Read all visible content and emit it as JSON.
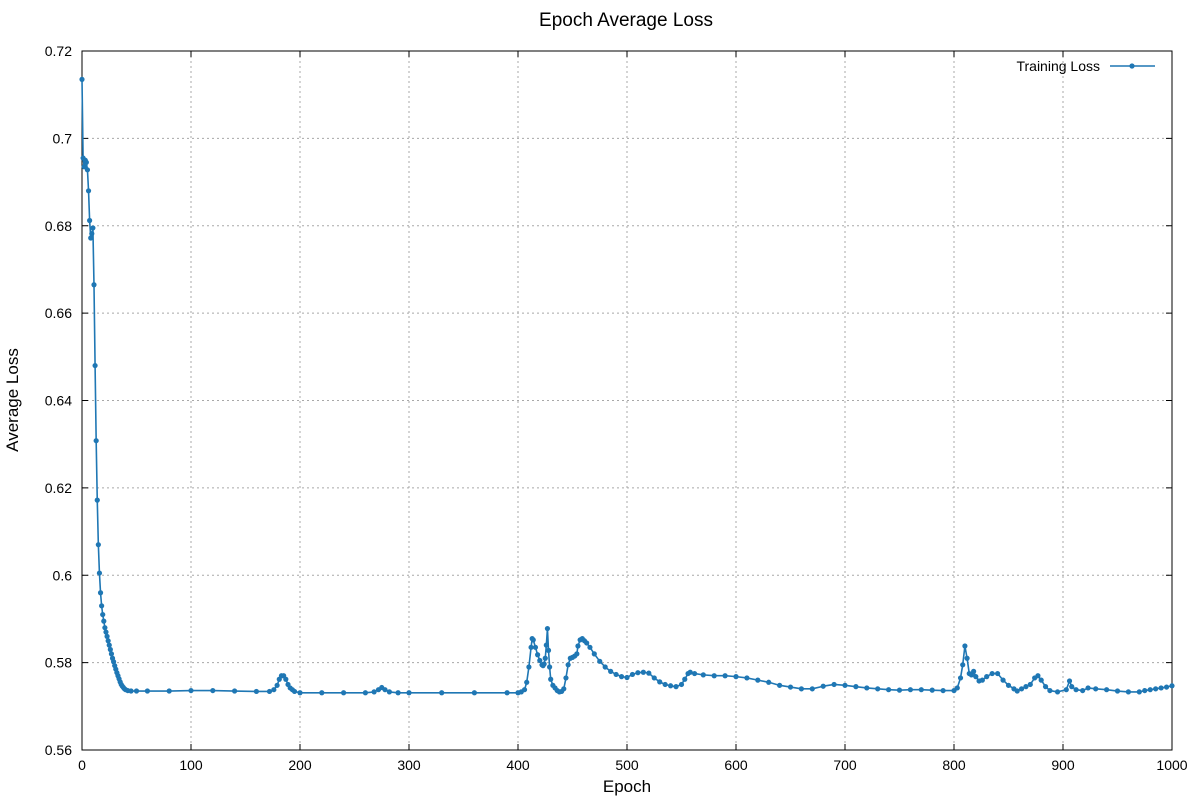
{
  "chart_data": {
    "type": "line",
    "title": "Epoch Average Loss",
    "xlabel": "Epoch",
    "ylabel": "Average Loss",
    "xlim": [
      0,
      1000
    ],
    "ylim": [
      0.56,
      0.72
    ],
    "xticks": [
      0,
      100,
      200,
      300,
      400,
      500,
      600,
      700,
      800,
      900,
      1000
    ],
    "xtick_labels": [
      "0",
      "100",
      "200",
      "300",
      "400",
      "500",
      "600",
      "700",
      "800",
      "900",
      "1000"
    ],
    "yticks": [
      0.56,
      0.58,
      0.6,
      0.62,
      0.64,
      0.66,
      0.68,
      0.7,
      0.72
    ],
    "ytick_labels": [
      "0.56",
      "0.58",
      "0.6",
      "0.62",
      "0.64",
      "0.66",
      "0.68",
      "0.7",
      "0.72"
    ],
    "grid": true,
    "legend_position": "top-right",
    "markers": true,
    "series": [
      {
        "name": "Training Loss",
        "color": "#1f77b4",
        "points": [
          [
            0,
            0.7135
          ],
          [
            1,
            0.6955
          ],
          [
            2,
            0.6935
          ],
          [
            3,
            0.695
          ],
          [
            4,
            0.6945
          ],
          [
            5,
            0.6928
          ],
          [
            6,
            0.688
          ],
          [
            7,
            0.6812
          ],
          [
            8,
            0.6772
          ],
          [
            9,
            0.6782
          ],
          [
            10,
            0.6795
          ],
          [
            11,
            0.6665
          ],
          [
            12,
            0.648
          ],
          [
            13,
            0.6308
          ],
          [
            14,
            0.6172
          ],
          [
            15,
            0.607
          ],
          [
            16,
            0.6005
          ],
          [
            17,
            0.596
          ],
          [
            18,
            0.593
          ],
          [
            19,
            0.591
          ],
          [
            20,
            0.5895
          ],
          [
            21,
            0.588
          ],
          [
            22,
            0.587
          ],
          [
            23,
            0.586
          ],
          [
            24,
            0.585
          ],
          [
            25,
            0.584
          ],
          [
            26,
            0.583
          ],
          [
            27,
            0.582
          ],
          [
            28,
            0.581
          ],
          [
            29,
            0.5802
          ],
          [
            30,
            0.5793
          ],
          [
            31,
            0.5785
          ],
          [
            32,
            0.5777
          ],
          [
            33,
            0.577
          ],
          [
            34,
            0.5763
          ],
          [
            35,
            0.5756
          ],
          [
            36,
            0.575
          ],
          [
            37,
            0.5746
          ],
          [
            38,
            0.5743
          ],
          [
            39,
            0.574
          ],
          [
            40,
            0.5738
          ],
          [
            42,
            0.5736
          ],
          [
            45,
            0.5735
          ],
          [
            50,
            0.5735
          ],
          [
            60,
            0.5735
          ],
          [
            80,
            0.5735
          ],
          [
            100,
            0.5736
          ],
          [
            120,
            0.5736
          ],
          [
            140,
            0.5735
          ],
          [
            160,
            0.5734
          ],
          [
            172,
            0.5734
          ],
          [
            176,
            0.5738
          ],
          [
            179,
            0.5748
          ],
          [
            181,
            0.5762
          ],
          [
            183,
            0.577
          ],
          [
            185,
            0.577
          ],
          [
            187,
            0.5762
          ],
          [
            189,
            0.575
          ],
          [
            191,
            0.5742
          ],
          [
            193,
            0.5738
          ],
          [
            195,
            0.5734
          ],
          [
            200,
            0.5731
          ],
          [
            220,
            0.5731
          ],
          [
            240,
            0.5731
          ],
          [
            260,
            0.5731
          ],
          [
            268,
            0.5733
          ],
          [
            272,
            0.5738
          ],
          [
            275,
            0.5743
          ],
          [
            278,
            0.5738
          ],
          [
            282,
            0.5733
          ],
          [
            290,
            0.5731
          ],
          [
            300,
            0.5731
          ],
          [
            330,
            0.5731
          ],
          [
            360,
            0.5731
          ],
          [
            390,
            0.5731
          ],
          [
            400,
            0.5731
          ],
          [
            403,
            0.5733
          ],
          [
            406,
            0.5738
          ],
          [
            408,
            0.5755
          ],
          [
            410,
            0.579
          ],
          [
            412,
            0.5835
          ],
          [
            413,
            0.5855
          ],
          [
            414,
            0.5852
          ],
          [
            416,
            0.5835
          ],
          [
            418,
            0.5818
          ],
          [
            420,
            0.5805
          ],
          [
            422,
            0.5795
          ],
          [
            423,
            0.5793
          ],
          [
            424,
            0.5797
          ],
          [
            425,
            0.581
          ],
          [
            426,
            0.584
          ],
          [
            427,
            0.5878
          ],
          [
            428,
            0.5828
          ],
          [
            429,
            0.579
          ],
          [
            430,
            0.5762
          ],
          [
            432,
            0.5748
          ],
          [
            434,
            0.5742
          ],
          [
            436,
            0.5736
          ],
          [
            438,
            0.5733
          ],
          [
            440,
            0.5734
          ],
          [
            442,
            0.574
          ],
          [
            444,
            0.5765
          ],
          [
            446,
            0.5795
          ],
          [
            448,
            0.581
          ],
          [
            450,
            0.5812
          ],
          [
            452,
            0.5815
          ],
          [
            454,
            0.582
          ],
          [
            455,
            0.5838
          ],
          [
            457,
            0.5852
          ],
          [
            459,
            0.5855
          ],
          [
            461,
            0.585
          ],
          [
            463,
            0.5845
          ],
          [
            466,
            0.5835
          ],
          [
            470,
            0.582
          ],
          [
            475,
            0.5803
          ],
          [
            480,
            0.579
          ],
          [
            485,
            0.578
          ],
          [
            490,
            0.5773
          ],
          [
            495,
            0.5768
          ],
          [
            500,
            0.5766
          ],
          [
            505,
            0.5773
          ],
          [
            510,
            0.5777
          ],
          [
            515,
            0.5778
          ],
          [
            520,
            0.5776
          ],
          [
            525,
            0.5765
          ],
          [
            530,
            0.5756
          ],
          [
            535,
            0.575
          ],
          [
            540,
            0.5747
          ],
          [
            545,
            0.5745
          ],
          [
            550,
            0.575
          ],
          [
            553,
            0.5762
          ],
          [
            556,
            0.5775
          ],
          [
            558,
            0.5778
          ],
          [
            562,
            0.5775
          ],
          [
            570,
            0.5772
          ],
          [
            580,
            0.577
          ],
          [
            590,
            0.577
          ],
          [
            600,
            0.5768
          ],
          [
            610,
            0.5765
          ],
          [
            620,
            0.576
          ],
          [
            630,
            0.5755
          ],
          [
            640,
            0.5748
          ],
          [
            650,
            0.5744
          ],
          [
            660,
            0.574
          ],
          [
            670,
            0.574
          ],
          [
            680,
            0.5746
          ],
          [
            690,
            0.575
          ],
          [
            700,
            0.5748
          ],
          [
            710,
            0.5745
          ],
          [
            720,
            0.5742
          ],
          [
            730,
            0.574
          ],
          [
            740,
            0.5738
          ],
          [
            750,
            0.5737
          ],
          [
            760,
            0.5738
          ],
          [
            770,
            0.5738
          ],
          [
            780,
            0.5737
          ],
          [
            790,
            0.5736
          ],
          [
            800,
            0.5736
          ],
          [
            803,
            0.5742
          ],
          [
            806,
            0.5765
          ],
          [
            808,
            0.5795
          ],
          [
            810,
            0.5838
          ],
          [
            812,
            0.581
          ],
          [
            814,
            0.5775
          ],
          [
            816,
            0.5772
          ],
          [
            818,
            0.578
          ],
          [
            820,
            0.5768
          ],
          [
            823,
            0.5758
          ],
          [
            826,
            0.576
          ],
          [
            830,
            0.5768
          ],
          [
            835,
            0.5775
          ],
          [
            840,
            0.5775
          ],
          [
            845,
            0.576
          ],
          [
            850,
            0.5748
          ],
          [
            855,
            0.574
          ],
          [
            858,
            0.5735
          ],
          [
            862,
            0.574
          ],
          [
            866,
            0.5745
          ],
          [
            870,
            0.575
          ],
          [
            874,
            0.5765
          ],
          [
            877,
            0.577
          ],
          [
            880,
            0.576
          ],
          [
            884,
            0.5745
          ],
          [
            888,
            0.5736
          ],
          [
            895,
            0.5733
          ],
          [
            903,
            0.5738
          ],
          [
            906,
            0.5758
          ],
          [
            908,
            0.5745
          ],
          [
            912,
            0.5738
          ],
          [
            918,
            0.5736
          ],
          [
            923,
            0.5742
          ],
          [
            930,
            0.574
          ],
          [
            940,
            0.5738
          ],
          [
            950,
            0.5735
          ],
          [
            960,
            0.5733
          ],
          [
            970,
            0.5733
          ],
          [
            975,
            0.5736
          ],
          [
            980,
            0.5738
          ],
          [
            985,
            0.574
          ],
          [
            990,
            0.5742
          ],
          [
            995,
            0.5744
          ],
          [
            1000,
            0.5747
          ]
        ]
      }
    ]
  }
}
